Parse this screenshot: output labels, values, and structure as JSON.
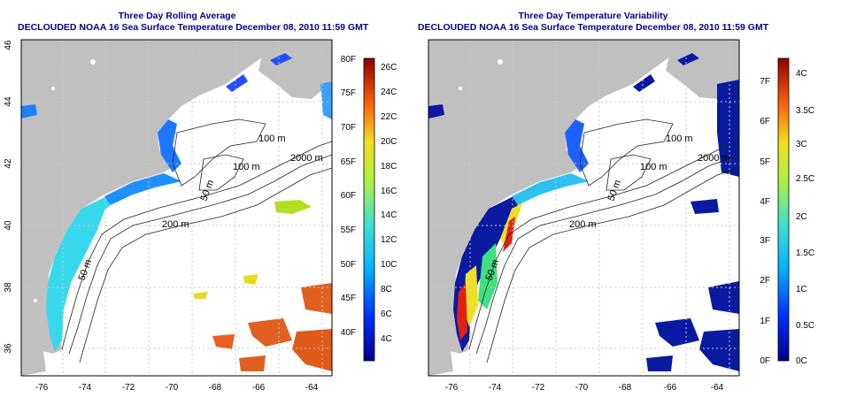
{
  "panels": [
    {
      "title_line1": "Three Day Rolling Average",
      "title_line2": "DECLOUDED NOAA 16 Sea Surface Temperature December 08, 2010 11:59 GMT",
      "colorbar_left_labels": [
        "80F",
        "75F",
        "70F",
        "65F",
        "60F",
        "55F",
        "50F",
        "45F",
        "40F"
      ],
      "colorbar_right_labels": [
        "26C",
        "24C",
        "22C",
        "20C",
        "18C",
        "16C",
        "14C",
        "12C",
        "10C",
        "8C",
        "6C",
        "4C"
      ]
    },
    {
      "title_line1": "Three Day Temperature Variability",
      "title_line2": "DECLOUDED NOAA 16 Sea Surface Temperature December 08, 2010 11:59 GMT",
      "colorbar_left_labels": [
        "7F",
        "6F",
        "5F",
        "4F",
        "3F",
        "2F",
        "1F",
        "0F"
      ],
      "colorbar_right_labels": [
        "4C",
        "3.5C",
        "3C",
        "2.5C",
        "2C",
        "1.5C",
        "1C",
        "0.5C",
        "0C"
      ]
    }
  ],
  "map": {
    "x_ticks": [
      "-76",
      "-74",
      "-72",
      "-70",
      "-68",
      "-66",
      "-64"
    ],
    "y_ticks": [
      "36",
      "38",
      "40",
      "42",
      "44",
      "46"
    ],
    "contour_labels": {
      "c100a": "100 m",
      "c100b": "100 m",
      "c2000": "2000 m",
      "c50a": "50 m",
      "c200": "200 m",
      "c50b": "50 m"
    }
  },
  "colors": {
    "title": "#00008b",
    "land": "#c0c0c0",
    "grid": "#c8c8c8"
  }
}
